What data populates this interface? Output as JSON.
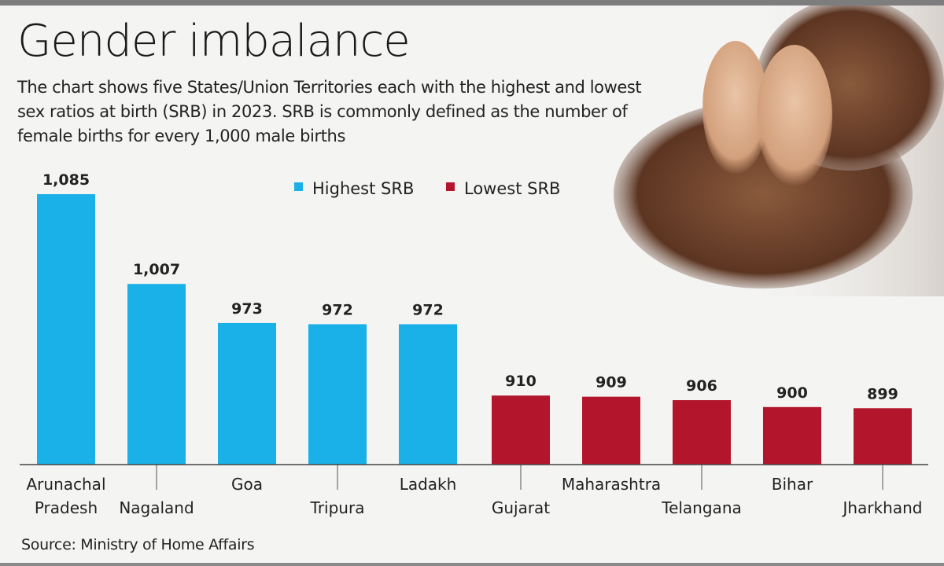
{
  "title": "Gender imbalance",
  "subtitle": "The chart shows five States/Union Territories each with the highest and lowest sex ratios at birth (SRB) in 2023. SRB is commonly defined as the number of female births for every 1,000 male births",
  "source": "Source: Ministry of Home Affairs",
  "colors": {
    "highest": "#1ab1e8",
    "lowest": "#b3162c",
    "background": "#f4f4f3"
  },
  "chart_data": {
    "type": "bar",
    "title": "Gender imbalance",
    "xlabel": "",
    "ylabel": "",
    "ylim": [
      850,
      1090
    ],
    "grid": false,
    "legend_placement": "top-center",
    "legend": [
      {
        "name": "Highest SRB",
        "color": "#1ab1e8"
      },
      {
        "name": "Lowest SRB",
        "color": "#b3162c"
      }
    ],
    "categories": [
      "Arunachal Pradesh",
      "Nagaland",
      "Goa",
      "Tripura",
      "Ladakh",
      "Gujarat",
      "Maharashtra",
      "Telangana",
      "Bihar",
      "Jharkhand"
    ],
    "category_lines": [
      [
        "Arunachal",
        "Pradesh"
      ],
      [
        "Nagaland"
      ],
      [
        "Goa"
      ],
      [
        "Tripura"
      ],
      [
        "Ladakh"
      ],
      [
        "Gujarat"
      ],
      [
        "Maharashtra"
      ],
      [
        "Telangana"
      ],
      [
        "Bihar"
      ],
      [
        "Jharkhand"
      ]
    ],
    "values": [
      1085,
      1007,
      973,
      972,
      972,
      910,
      909,
      906,
      900,
      899
    ],
    "data_labels": [
      "1,085",
      "1,007",
      "973",
      "972",
      "972",
      "910",
      "909",
      "906",
      "900",
      "899"
    ],
    "series_group": [
      "Highest SRB",
      "Highest SRB",
      "Highest SRB",
      "Highest SRB",
      "Highest SRB",
      "Lowest SRB",
      "Lowest SRB",
      "Lowest SRB",
      "Lowest SRB",
      "Lowest SRB"
    ]
  }
}
